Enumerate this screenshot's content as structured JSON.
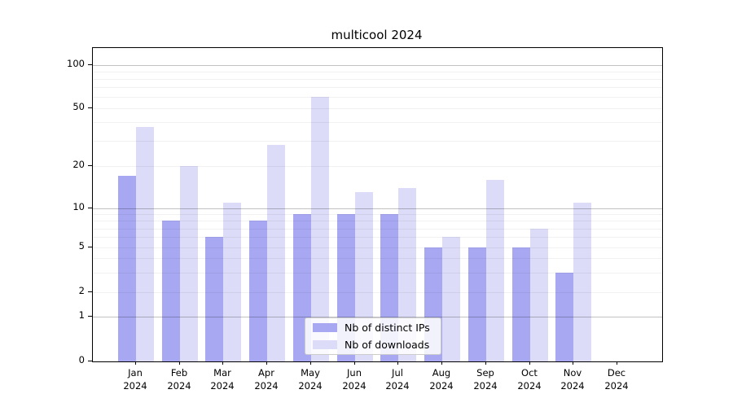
{
  "chart_data": {
    "type": "bar",
    "title": "multicool 2024",
    "categories": [
      "Jan 2024",
      "Feb 2024",
      "Mar 2024",
      "Apr 2024",
      "May 2024",
      "Jun 2024",
      "Jul 2024",
      "Aug 2024",
      "Sep 2024",
      "Oct 2024",
      "Nov 2024",
      "Dec 2024"
    ],
    "series": [
      {
        "name": "Nb of distinct IPs",
        "color": "#a8a8f2",
        "values": [
          17,
          8,
          6,
          8,
          9,
          9,
          9,
          5,
          5,
          5,
          3,
          0
        ]
      },
      {
        "name": "Nb of downloads",
        "color": "#dcdcf8",
        "values": [
          37,
          20,
          11,
          28,
          60,
          13,
          14,
          6,
          16,
          7,
          11,
          0
        ]
      }
    ],
    "yscale": "symlog",
    "ylim": [
      0,
      130
    ],
    "yticks": [
      0,
      1,
      2,
      5,
      10,
      20,
      50,
      100
    ],
    "minor_gridlines": [
      3,
      4,
      6,
      7,
      8,
      9,
      30,
      40,
      60,
      70,
      80,
      90
    ],
    "strong_gridlines": [
      1,
      10,
      100
    ],
    "grid": true,
    "legend_position": "bottom-center",
    "xlabel": "",
    "ylabel": ""
  }
}
